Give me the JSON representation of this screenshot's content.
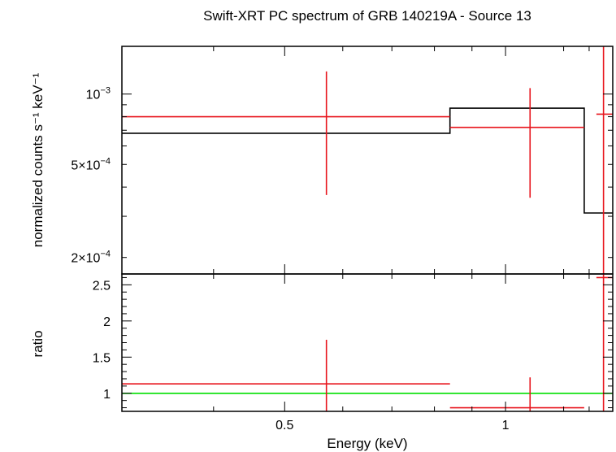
{
  "chart_data": [
    {
      "type": "line",
      "title": "Swift-XRT PC spectrum of GRB 140219A - Source 13",
      "ylabel": "normalized counts s⁻¹ keV⁻¹",
      "xlabel": "",
      "x_scale": "log",
      "y_scale": "log",
      "xlim": [
        0.3,
        1.4
      ],
      "ylim": [
        0.00017,
        0.0016
      ],
      "y_tick_labels": [
        {
          "value": 0.001,
          "base": "10",
          "exp": "−3"
        },
        {
          "value": 0.0005,
          "base": "5×10",
          "exp": "−4"
        },
        {
          "value": 0.0002,
          "base": "2×10",
          "exp": "−4"
        }
      ],
      "series": [
        {
          "role": "model",
          "color": "#000000",
          "steps": [
            {
              "x0": 0.3,
              "x1": 0.84,
              "y": 0.00068
            },
            {
              "x0": 0.84,
              "x1": 1.28,
              "y": 0.00087
            },
            {
              "x0": 1.28,
              "x1": 1.4,
              "y": 0.00031
            }
          ]
        },
        {
          "role": "data",
          "color": "#e8141c",
          "points": [
            {
              "x": 0.57,
              "xlo": 0.3,
              "xhi": 0.84,
              "y": 0.0008,
              "ylo": 0.00037,
              "yhi": 0.00125
            },
            {
              "x": 1.08,
              "xlo": 0.84,
              "xhi": 1.28,
              "y": 0.00072,
              "ylo": 0.00036,
              "yhi": 0.00106
            },
            {
              "x": 1.36,
              "xlo": 1.33,
              "xhi": 1.4,
              "y": 0.00082,
              "ylo": 0.00017,
              "yhi": 0.0016
            }
          ]
        }
      ]
    },
    {
      "type": "line",
      "title": "",
      "ylabel": "ratio",
      "xlabel": "Energy (keV)",
      "x_scale": "log",
      "xlim": [
        0.3,
        1.4
      ],
      "ylim": [
        0.75,
        2.65
      ],
      "x_ticks": [
        0.5,
        1
      ],
      "x_tick_labels": [
        "0.5",
        "1"
      ],
      "y_ticks": [
        1,
        1.5,
        2,
        2.5
      ],
      "y_tick_labels": [
        "1",
        "1.5",
        "2",
        "2.5"
      ],
      "series": [
        {
          "role": "reference",
          "color": "#00e000",
          "y": 1
        },
        {
          "role": "data",
          "color": "#e8141c",
          "points": [
            {
              "x": 0.57,
              "xlo": 0.3,
              "xhi": 0.84,
              "y": 1.13,
              "ylo": 0.75,
              "yhi": 1.74
            },
            {
              "x": 1.08,
              "xlo": 0.84,
              "xhi": 1.28,
              "y": 0.8,
              "ylo": 0.75,
              "yhi": 1.22
            },
            {
              "x": 1.36,
              "xlo": 1.33,
              "xhi": 1.4,
              "y": 2.6,
              "ylo": 0.75,
              "yhi": 2.65
            }
          ]
        }
      ]
    }
  ]
}
